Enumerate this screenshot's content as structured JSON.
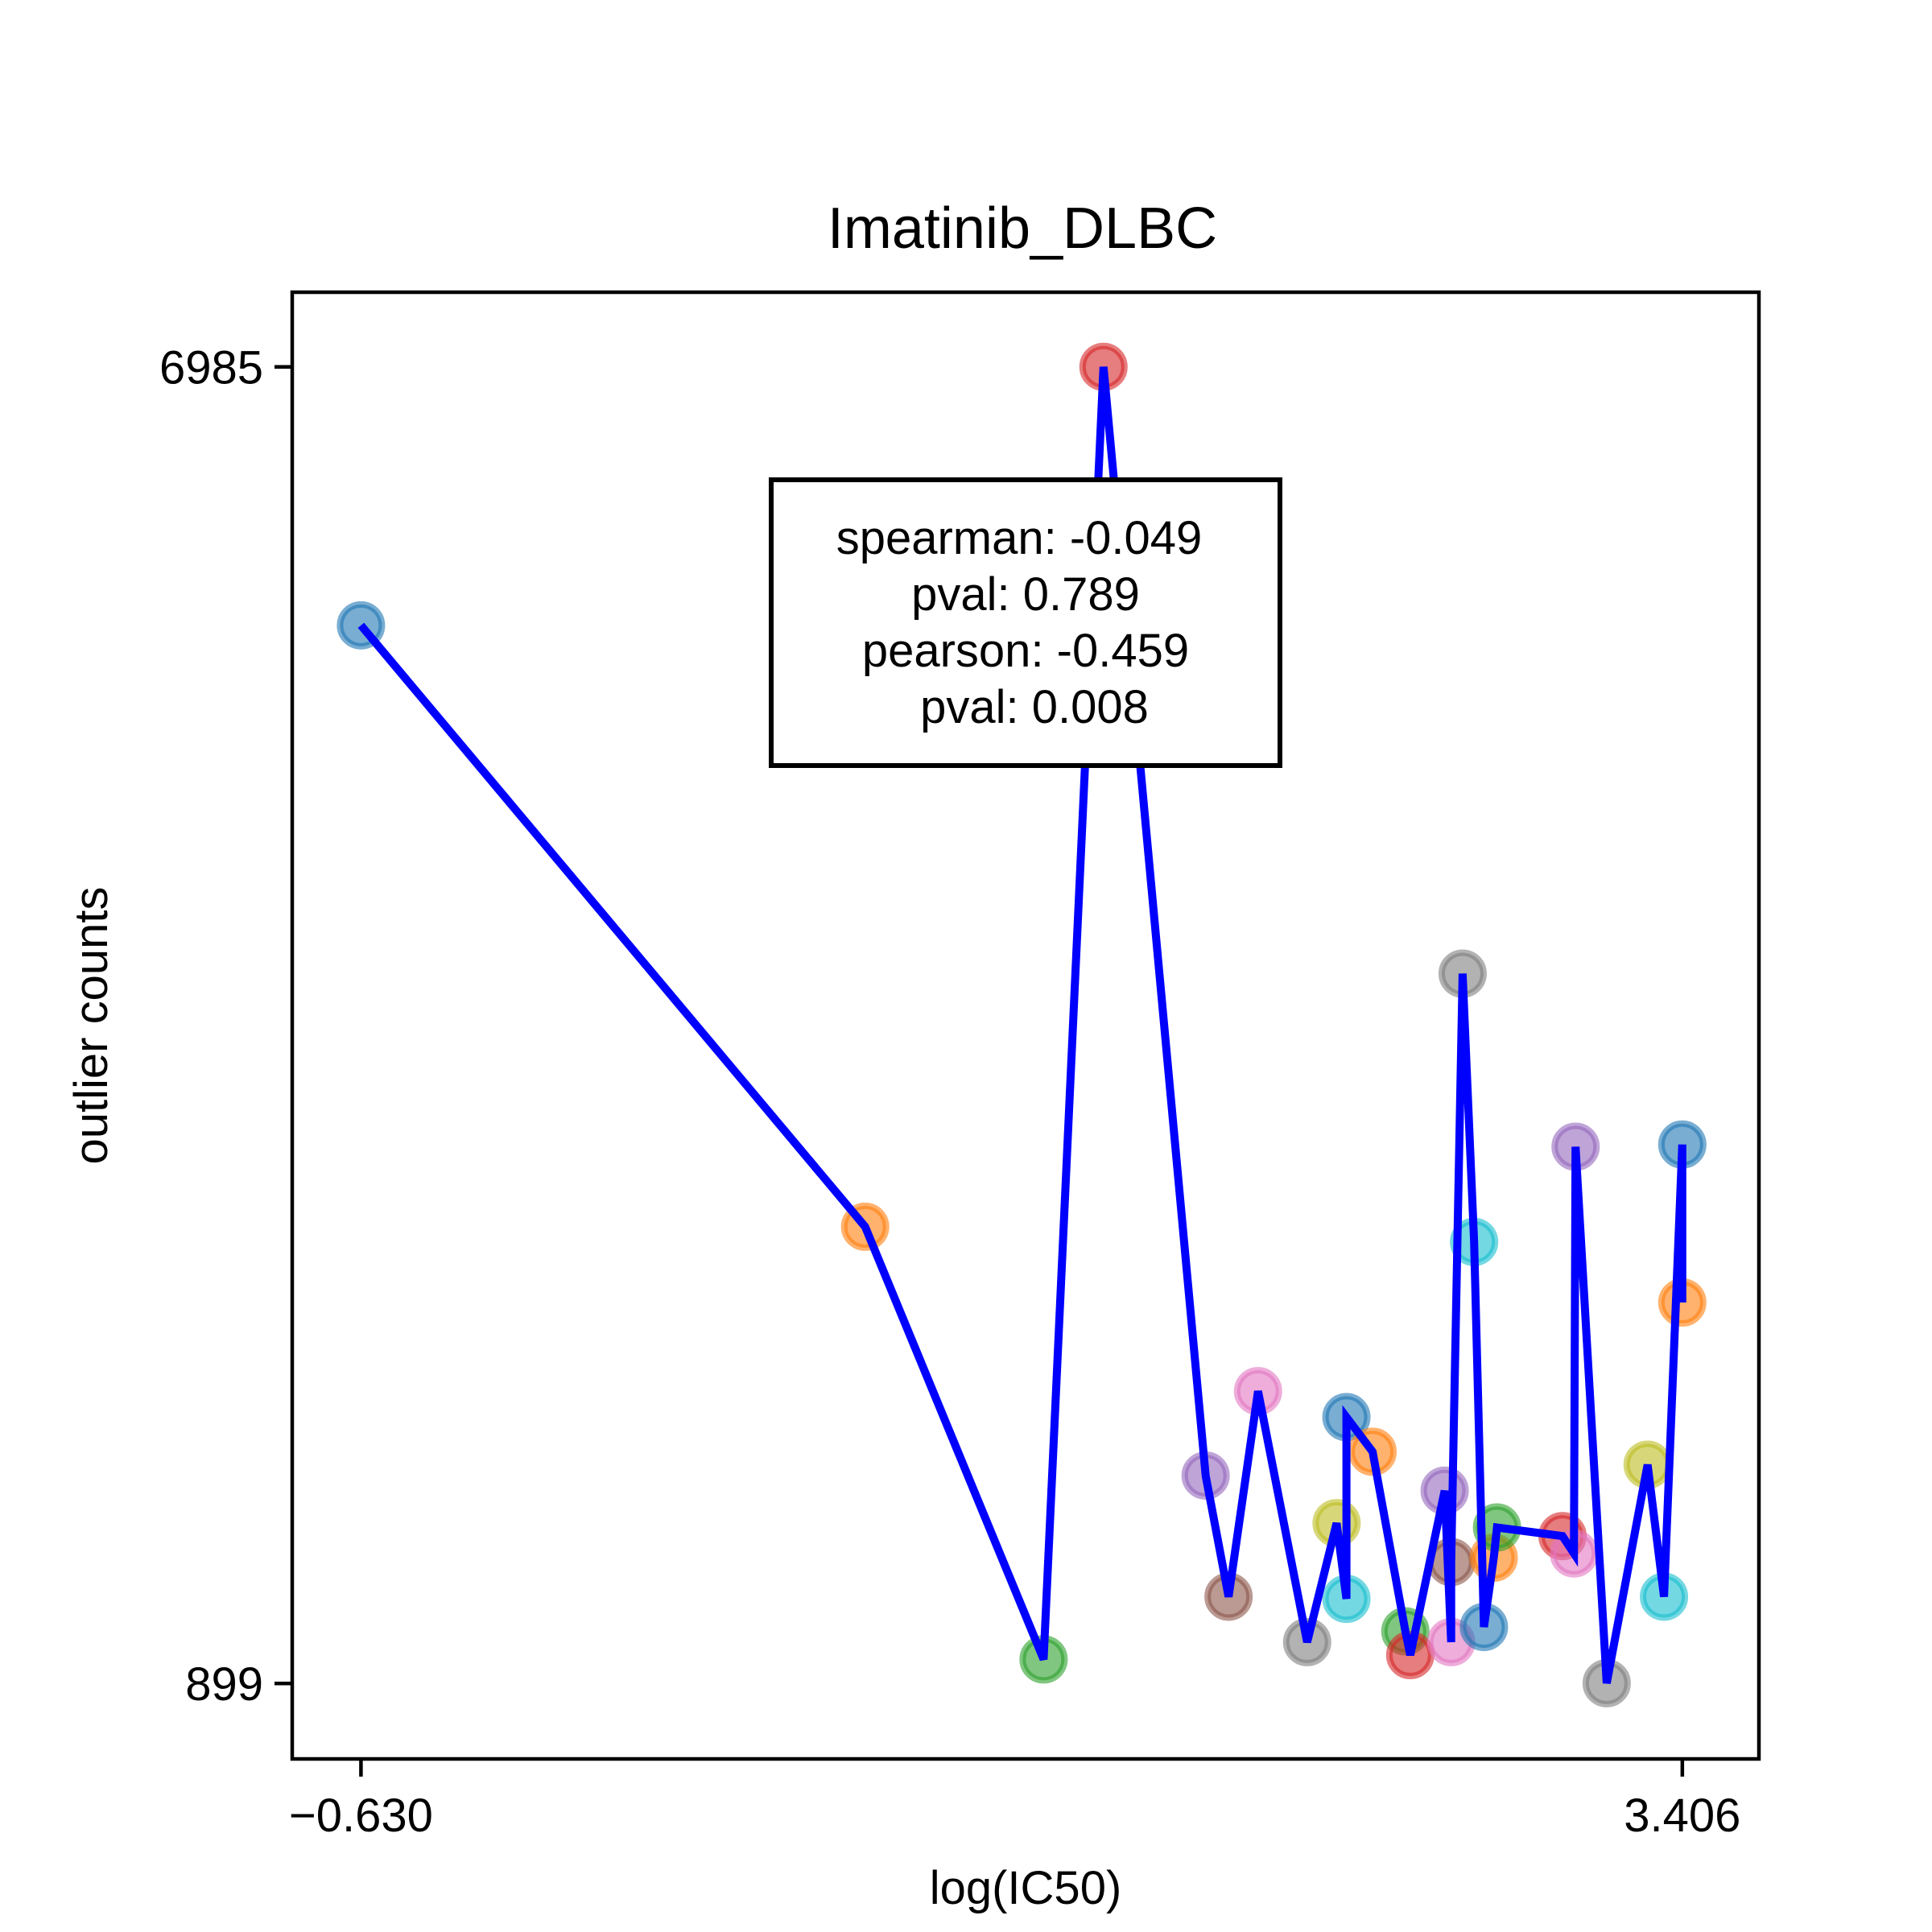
{
  "chart_data": {
    "type": "scatter",
    "title": "Imatinib_DLBC",
    "xlabel": "log(IC50)",
    "ylabel": "outlier counts",
    "xlim": [
      -0.84,
      3.64
    ],
    "ylim": [
      550,
      7330
    ],
    "x_ticks": [
      -0.63,
      3.406
    ],
    "x_tick_labels": [
      "−0.630",
      "3.406"
    ],
    "y_ticks": [
      899,
      6985
    ],
    "y_tick_labels": [
      "899",
      "6985"
    ],
    "grid": false,
    "legend": "none",
    "line_color": "#0000ff",
    "annotation": {
      "lines": [
        "spearman: -0.049",
        "pval: 0.789",
        "pearson: -0.459",
        "pval: 0.008"
      ],
      "placement": "top-center"
    },
    "points": [
      {
        "x": -0.63,
        "y": 5790,
        "color": "#1f77b4"
      },
      {
        "x": 0.91,
        "y": 3010,
        "color": "#ff7f0e"
      },
      {
        "x": 1.455,
        "y": 1010,
        "color": "#2ca02c"
      },
      {
        "x": 1.638,
        "y": 6985,
        "color": "#d62728"
      },
      {
        "x": 1.95,
        "y": 1860,
        "color": "#9467bd"
      },
      {
        "x": 2.02,
        "y": 1300,
        "color": "#8c564b"
      },
      {
        "x": 2.11,
        "y": 2250,
        "color": "#e377c2"
      },
      {
        "x": 2.26,
        "y": 1090,
        "color": "#7f7f7f"
      },
      {
        "x": 2.35,
        "y": 1640,
        "color": "#bcbd22"
      },
      {
        "x": 2.38,
        "y": 1290,
        "color": "#17becf"
      },
      {
        "x": 2.38,
        "y": 2130,
        "color": "#1f77b4"
      },
      {
        "x": 2.46,
        "y": 1970,
        "color": "#ff7f0e"
      },
      {
        "x": 2.56,
        "y": 1140,
        "color": "#2ca02c"
      },
      {
        "x": 2.575,
        "y": 1030,
        "color": "#d62728"
      },
      {
        "x": 2.68,
        "y": 1790,
        "color": "#9467bd"
      },
      {
        "x": 2.7,
        "y": 1090,
        "color": "#e377c2"
      },
      {
        "x": 2.7,
        "y": 1460,
        "color": "#8c564b"
      },
      {
        "x": 2.735,
        "y": 4180,
        "color": "#7f7f7f"
      },
      {
        "x": 2.77,
        "y": 2940,
        "color": "#17becf"
      },
      {
        "x": 2.8,
        "y": 1160,
        "color": "#1f77b4"
      },
      {
        "x": 2.83,
        "y": 1480,
        "color": "#ff7f0e"
      },
      {
        "x": 2.84,
        "y": 1620,
        "color": "#2ca02c"
      },
      {
        "x": 3.04,
        "y": 1580,
        "color": "#d62728"
      },
      {
        "x": 3.075,
        "y": 1500,
        "color": "#e377c2"
      },
      {
        "x": 3.08,
        "y": 3380,
        "color": "#9467bd"
      },
      {
        "x": 3.175,
        "y": 900,
        "color": "#7f7f7f"
      },
      {
        "x": 3.3,
        "y": 1910,
        "color": "#bcbd22"
      },
      {
        "x": 3.35,
        "y": 1300,
        "color": "#17becf"
      },
      {
        "x": 3.406,
        "y": 3390,
        "color": "#1f77b4"
      },
      {
        "x": 3.406,
        "y": 2660,
        "color": "#ff7f0e"
      }
    ]
  }
}
